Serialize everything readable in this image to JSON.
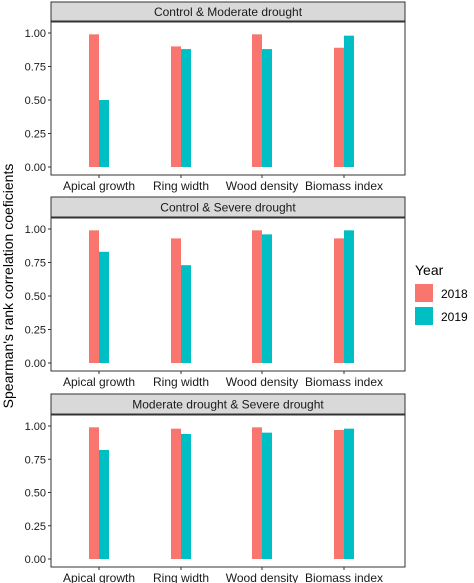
{
  "chart_data": {
    "type": "bar",
    "ylabel": "Spearman's rank correlation coeficients",
    "xlabel": "",
    "ylim": [
      0,
      1.0
    ],
    "yticks": [
      "0.00",
      "0.25",
      "0.50",
      "0.75",
      "1.00"
    ],
    "categories": [
      "Apical growth",
      "Ring width",
      "Wood density",
      "Biomass index"
    ],
    "legend": {
      "title": "Year",
      "position": "right",
      "entries": [
        "2018",
        "2019"
      ]
    },
    "colors": {
      "2018": "#F8766D",
      "2019": "#00BFC4",
      "strip": "#D9D9D9"
    },
    "panels": [
      {
        "title": "Control & Moderate drought",
        "series": [
          {
            "name": "2018",
            "values": [
              0.99,
              0.9,
              0.99,
              0.89
            ]
          },
          {
            "name": "2019",
            "values": [
              0.5,
              0.88,
              0.88,
              0.98
            ]
          }
        ]
      },
      {
        "title": "Control & Severe drought",
        "series": [
          {
            "name": "2018",
            "values": [
              0.99,
              0.93,
              0.99,
              0.93
            ]
          },
          {
            "name": "2019",
            "values": [
              0.83,
              0.73,
              0.96,
              0.99
            ]
          }
        ]
      },
      {
        "title": "Moderate drought & Severe drought",
        "series": [
          {
            "name": "2018",
            "values": [
              0.99,
              0.98,
              0.99,
              0.97
            ]
          },
          {
            "name": "2019",
            "values": [
              0.82,
              0.94,
              0.95,
              0.98
            ]
          }
        ]
      }
    ]
  }
}
